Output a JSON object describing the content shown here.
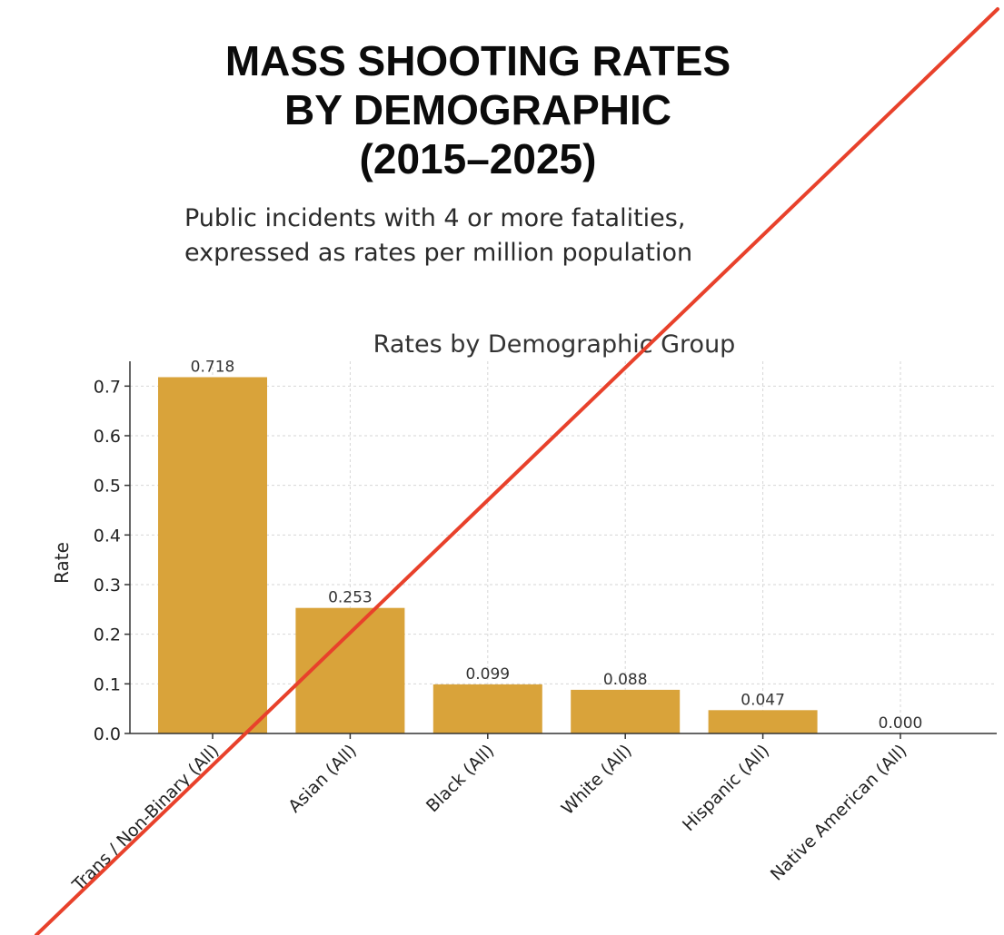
{
  "header": {
    "title_lines": [
      "MASS SHOOTING RATES",
      "BY DEMOGRAPHIC",
      "(2015–2025)"
    ],
    "subtitle_lines": [
      "Public incidents with 4 or more fatalities,",
      "expressed as rates per million population"
    ]
  },
  "chart_data": {
    "type": "bar",
    "title": "Rates by Demographic Group",
    "xlabel": "",
    "ylabel": "Rate",
    "categories": [
      "Trans / Non-Binary (All)",
      "Asian (All)",
      "Black (All)",
      "White (All)",
      "Hispanic (All)",
      "Native American (All)"
    ],
    "values": [
      0.718,
      0.253,
      0.099,
      0.088,
      0.047,
      0.0
    ],
    "data_labels": [
      "0.718",
      "0.253",
      "0.099",
      "0.088",
      "0.047",
      "0.000"
    ],
    "ylim": [
      0,
      0.75
    ],
    "yticks": [
      0.0,
      0.1,
      0.2,
      0.3,
      0.4,
      0.5,
      0.6,
      0.7
    ],
    "ytick_labels": [
      "0.0",
      "0.1",
      "0.2",
      "0.3",
      "0.4",
      "0.5",
      "0.6",
      "0.7"
    ],
    "grid": true,
    "legend": "none",
    "colors": {
      "bar": "#D9A33A",
      "grid": "#d6d6d6",
      "axis": "#333333",
      "strike_line": "#E8412B"
    }
  }
}
